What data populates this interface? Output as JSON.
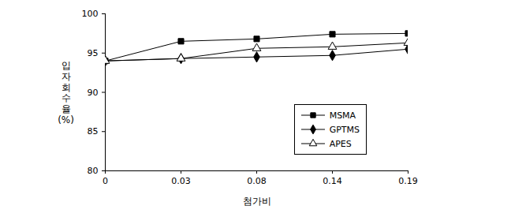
{
  "chart_data": {
    "type": "line",
    "x_label": "첨가비",
    "y_label": "입자회수율 (%)",
    "categories": [
      "0",
      "0.03",
      "0.08",
      "0.14",
      "0.19"
    ],
    "series": [
      {
        "name": "MSMA",
        "color": "#000000",
        "marker": "square",
        "values": [
          94,
          96.5,
          96.8,
          97.4,
          97.5
        ]
      },
      {
        "name": "GPTMS",
        "color": "#000000",
        "marker": "diamond",
        "values": [
          94,
          94.3,
          94.5,
          94.7,
          95.5
        ]
      },
      {
        "name": "APES",
        "color": "#000000",
        "marker": "triangle-open",
        "values": [
          94,
          94.3,
          95.6,
          95.8,
          96.3
        ]
      }
    ],
    "ylim": [
      80,
      100
    ],
    "yticks": [
      80,
      85,
      90,
      95,
      100
    ],
    "grid": false,
    "legend": "lower right"
  }
}
